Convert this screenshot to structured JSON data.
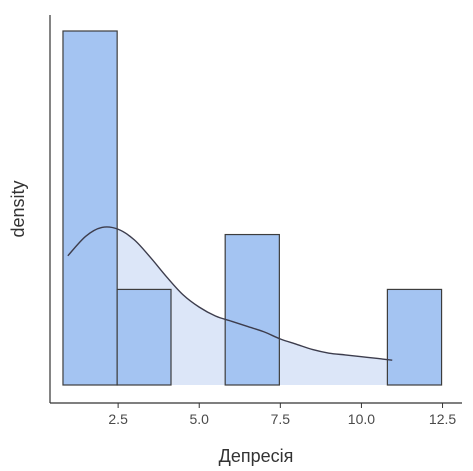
{
  "chart_data": {
    "type": "bar",
    "subtype": "histogram-with-density",
    "title": "",
    "xlabel": "Депресія",
    "ylabel": "density",
    "xlim": [
      0.4,
      13.1
    ],
    "ylim": [
      0,
      1
    ],
    "x_ticks": [
      2.5,
      5.0,
      7.5,
      10.0,
      12.5
    ],
    "x_tick_labels": [
      "2.5",
      "5.0",
      "7.5",
      "10.0",
      "12.5"
    ],
    "y_ticks_shown": false,
    "grid": false,
    "legend": "none",
    "bins": [
      {
        "x0": 0.8,
        "x1": 2.47,
        "height": 1.0
      },
      {
        "x0": 2.47,
        "x1": 4.13,
        "height": 0.27
      },
      {
        "x0": 4.13,
        "x1": 5.8,
        "height": 0.0
      },
      {
        "x0": 5.8,
        "x1": 7.47,
        "height": 0.425
      },
      {
        "x0": 7.47,
        "x1": 9.13,
        "height": 0.0
      },
      {
        "x0": 9.13,
        "x1": 10.8,
        "height": 0.0
      },
      {
        "x0": 10.8,
        "x1": 12.47,
        "height": 0.27
      }
    ],
    "density": {
      "x": [
        0.95,
        1.5,
        2.0,
        2.5,
        3.0,
        3.5,
        4.0,
        4.5,
        5.0,
        5.5,
        6.0,
        6.5,
        7.0,
        7.5,
        8.0,
        8.5,
        9.0,
        9.5,
        10.0,
        10.5,
        10.95
      ],
      "y": [
        0.365,
        0.42,
        0.445,
        0.44,
        0.41,
        0.36,
        0.305,
        0.255,
        0.22,
        0.195,
        0.18,
        0.165,
        0.15,
        0.13,
        0.115,
        0.1,
        0.09,
        0.085,
        0.08,
        0.075,
        0.07
      ]
    },
    "colors": {
      "bar_fill": "#a4c4f2",
      "bar_stroke": "#3d3d3d",
      "density_fill": "#dce6f8",
      "density_line": "#3d3d4d",
      "axis": "#333333"
    }
  }
}
